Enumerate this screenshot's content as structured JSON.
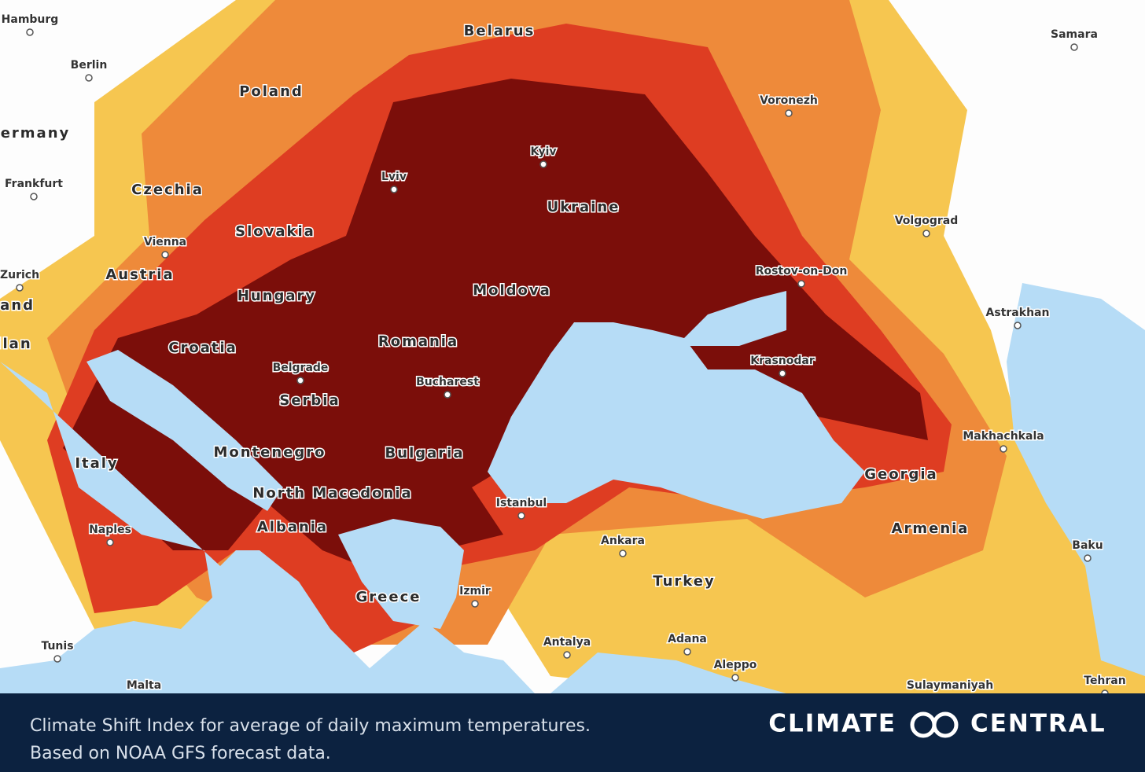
{
  "map": {
    "countries": [
      "Belarus",
      "Poland",
      "ermany",
      "Czechia",
      "Slovakia",
      "Austria",
      "Hungary",
      "Croatia",
      "Serbia",
      "Romania",
      "Moldova",
      "Ukraine",
      "Bulgaria",
      "Montenegro",
      "North Macedonia",
      "Albania",
      "Italy",
      "Greece",
      "Turkey",
      "Georgia",
      "Armenia",
      "land",
      "ilan"
    ],
    "cities": [
      "Hamburg",
      "Berlin",
      "Frankfurt",
      "Zurich",
      "Vienna",
      "Lviv",
      "Kyiv",
      "Voronezh",
      "Samara",
      "Volgograd",
      "Rostov-on-Don",
      "Astrakhan",
      "Krasnodar",
      "Makhachkala",
      "Baku",
      "Belgrade",
      "Bucharest",
      "Istanbul",
      "Ankara",
      "Izmir",
      "Antalya",
      "Adana",
      "Aleppo",
      "Naples",
      "Tunis",
      "Malta",
      "Sulaymaniyah",
      "Tehran"
    ]
  },
  "caption": {
    "lines": [
      "Climate Shift Index for average of daily maximum temperatures.",
      "Based on NOAA GFS forecast data."
    ]
  },
  "logo": {
    "left": "CLIMATE",
    "right": "CENTRAL"
  }
}
